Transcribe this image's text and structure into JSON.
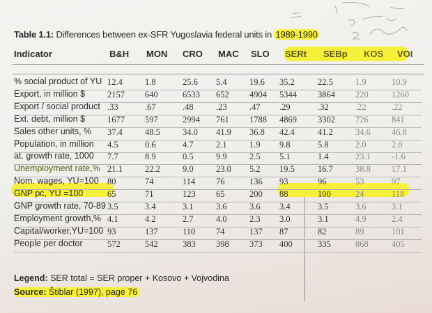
{
  "title": {
    "label": "Table 1.1:",
    "text": "Differences between ex-SFR Yugoslavia federal units in",
    "years": "1989-1990"
  },
  "columns": [
    "Indicator",
    "B&H",
    "MON",
    "CRO",
    "MAC",
    "SLO",
    "SERt",
    "SEBp",
    "KOS",
    "VOI"
  ],
  "rows": [
    {
      "label": "% social product of YU",
      "values": [
        "12.4",
        "1.8",
        "25.6",
        "5.4",
        "19.6",
        "35.2",
        "22.5",
        "1.9",
        "10.9"
      ]
    },
    {
      "label": "Export, in million $",
      "values": [
        "2157",
        "640",
        "6533",
        "652",
        "4904",
        "5344",
        "3864",
        "220",
        "1260"
      ]
    },
    {
      "label": "Export / social product",
      "values": [
        ".33",
        ".67",
        ".48",
        ".23",
        ".47",
        ".29",
        ".32",
        ".22",
        ".22"
      ]
    },
    {
      "label": "Ext. debt, million $",
      "values": [
        "1677",
        "597",
        "2994",
        "761",
        "1788",
        "4869",
        "3302",
        "726",
        "841"
      ]
    },
    {
      "label": "Sales other units, %",
      "values": [
        "37.4",
        "48.5",
        "34.0",
        "41.9",
        "36.8",
        "42.4",
        "41.2",
        "34.6",
        "46.8"
      ]
    },
    {
      "label": "Population, in million",
      "values": [
        "4.5",
        "0.6",
        "4.7",
        "2.1",
        "1.9",
        "9.8",
        "5.8",
        "2.0",
        "2.0"
      ]
    },
    {
      "label": "at. growth rate, 1000",
      "values": [
        "7.7",
        "8.9",
        "0.5",
        "9.9",
        "2.5",
        "5.1",
        "1.4",
        "23.1",
        "-1.6"
      ]
    },
    {
      "label": "Unemployment rate,%",
      "values": [
        "21.1",
        "22.2",
        "9.0",
        "23.0",
        "5.2",
        "19.5",
        "16.7",
        "38.8",
        "17.1"
      ]
    },
    {
      "label": "Nom. wages, YU=100",
      "values": [
        "80",
        "74",
        "114",
        "76",
        "136",
        "93",
        "96",
        "53",
        "97"
      ]
    },
    {
      "label": "GNP pc, YU =100",
      "values": [
        "65",
        "71",
        "123",
        "65",
        "200",
        "88",
        "100",
        "24",
        "118"
      ]
    },
    {
      "label": "GNP growth rate, 70-89",
      "values": [
        "3.5",
        "3.4",
        "3.1",
        "3.6",
        "3.6",
        "3.4",
        "3.5",
        "3.6",
        "3.1"
      ]
    },
    {
      "label": "Employment growth,%",
      "values": [
        "4.1",
        "4.2",
        "2.7",
        "4.0",
        "2.3",
        "3.0",
        "3.1",
        "4.9",
        "2.4"
      ]
    },
    {
      "label": "Capital/worker,YU=100",
      "values": [
        "93",
        "137",
        "110",
        "74",
        "137",
        "87",
        "82",
        "89",
        "101"
      ]
    },
    {
      "label": "People per doctor",
      "values": [
        "572",
        "542",
        "383",
        "398",
        "373",
        "400",
        "335",
        "868",
        "405"
      ]
    }
  ],
  "legend": {
    "label": "Legend:",
    "text": "SER total = SER proper + Kosovo + Vojvodina"
  },
  "source": {
    "label": "Source:",
    "text": "Štiblar (1997), page 76"
  },
  "colors": {
    "highlight": "#f6f03a",
    "text": "#2a2a2a"
  }
}
